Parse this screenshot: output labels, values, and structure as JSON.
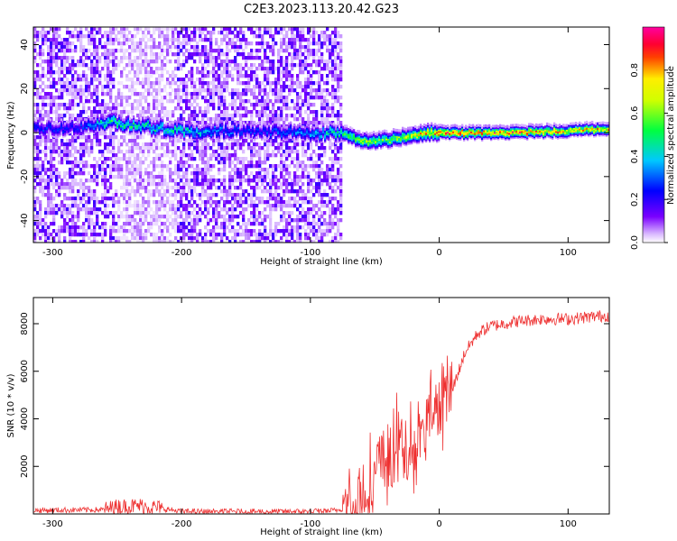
{
  "title": "C2E3.2023.113.20.42.G23",
  "chart_data": [
    {
      "type": "heatmap",
      "xlabel": "Height of straight line (km)",
      "ylabel": "Frequency (Hz)",
      "xlim": [
        -315,
        132
      ],
      "ylim": [
        -50,
        48
      ],
      "xticks": [
        -300,
        -200,
        -100,
        0,
        100
      ],
      "yticks": [
        -40,
        -20,
        0,
        20,
        40
      ],
      "colorbar": {
        "label": "Normalized spectral amplitude",
        "range": [
          0,
          1
        ],
        "ticks": [
          0.0,
          0.2,
          0.4,
          0.6,
          0.8
        ],
        "colormap": [
          "#ffffff",
          "#6a00ff",
          "#0000ff",
          "#00ccff",
          "#00ff00",
          "#ffff00",
          "#ff0000",
          "#ff00aa"
        ]
      },
      "noise_region": {
        "x": [
          -315,
          -76
        ],
        "y": [
          -50,
          48
        ]
      },
      "signal_ridge": [
        {
          "x": -310,
          "freq": 2,
          "amp": 0.25
        },
        {
          "x": -280,
          "freq": 3,
          "amp": 0.25
        },
        {
          "x": -255,
          "freq": 5,
          "amp": 0.5
        },
        {
          "x": -230,
          "freq": 3,
          "amp": 0.45
        },
        {
          "x": -200,
          "freq": 1,
          "amp": 0.45
        },
        {
          "x": -150,
          "freq": 1,
          "amp": 0.25
        },
        {
          "x": -100,
          "freq": 0,
          "amp": 0.35
        },
        {
          "x": -76,
          "freq": 0,
          "amp": 0.5
        },
        {
          "x": -60,
          "freq": -4,
          "amp": 0.6
        },
        {
          "x": -40,
          "freq": -3,
          "amp": 0.6
        },
        {
          "x": -20,
          "freq": -1,
          "amp": 0.65
        },
        {
          "x": -10,
          "freq": 0,
          "amp": 0.8
        },
        {
          "x": 0,
          "freq": 0,
          "amp": 0.85
        },
        {
          "x": 50,
          "freq": 0,
          "amp": 0.85
        },
        {
          "x": 100,
          "freq": 1,
          "amp": 0.75
        },
        {
          "x": 132,
          "freq": 2,
          "amp": 0.75
        }
      ]
    },
    {
      "type": "line",
      "xlabel": "Height of straight line (km)",
      "ylabel": "SNR (10 * v/v)",
      "xlim": [
        -315,
        132
      ],
      "ylim": [
        0,
        9100
      ],
      "xticks": [
        -300,
        -200,
        -100,
        0,
        100
      ],
      "yticks": [
        2000,
        4000,
        6000,
        8000
      ],
      "color": "#ee3030",
      "x": [
        -315,
        -260,
        -250,
        -230,
        -200,
        -150,
        -100,
        -80,
        -70,
        -60,
        -50,
        -40,
        -30,
        -20,
        -10,
        0,
        10,
        20,
        30,
        40,
        50,
        60,
        70,
        80,
        100,
        120,
        132
      ],
      "y": [
        150,
        180,
        300,
        350,
        100,
        100,
        100,
        150,
        300,
        800,
        1600,
        2500,
        3000,
        3200,
        3800,
        4500,
        5200,
        6800,
        7600,
        7900,
        8000,
        8100,
        8150,
        8200,
        8200,
        8300,
        8350
      ]
    }
  ]
}
